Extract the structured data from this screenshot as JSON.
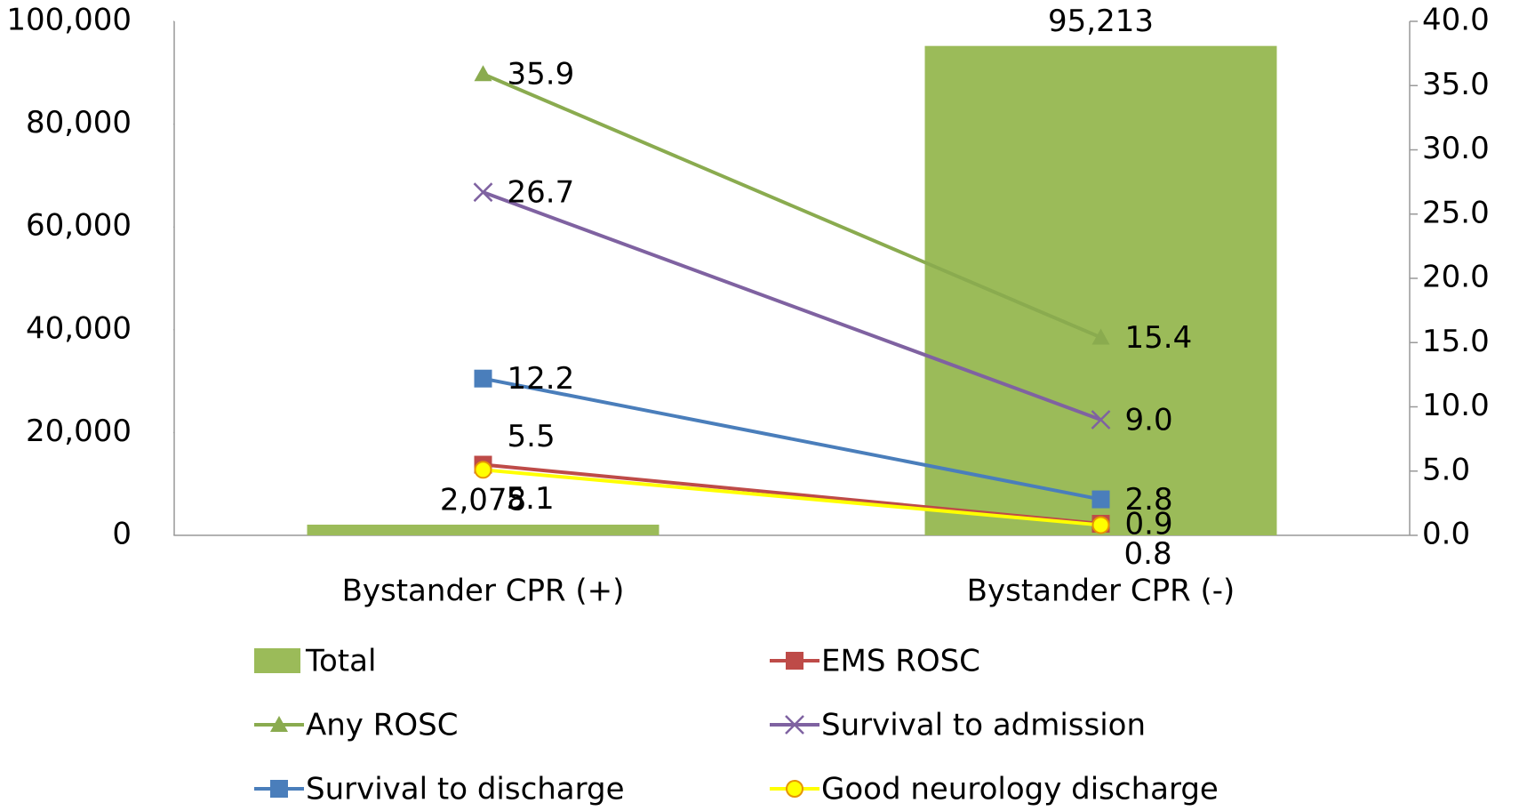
{
  "chart_data": {
    "type": "combo",
    "categories": [
      "Bystander CPR (+)",
      "Bystander CPR (-)"
    ],
    "series": [
      {
        "name": "Total",
        "type": "bar",
        "color": "#9bbb59",
        "values": [
          2078,
          95213
        ],
        "value_labels": [
          "2,078",
          "95,213"
        ]
      },
      {
        "name": "EMS ROSC",
        "type": "line",
        "axis": "y2",
        "marker": "square",
        "color": "#be4b48",
        "values": [
          5.5,
          0.9
        ]
      },
      {
        "name": "Any ROSC",
        "type": "line",
        "axis": "y2",
        "marker": "triangle",
        "color": "#8aab4f",
        "values": [
          35.9,
          15.4
        ]
      },
      {
        "name": "Survival to admission",
        "type": "line",
        "axis": "y2",
        "marker": "x",
        "color": "#7f62a1",
        "values": [
          26.7,
          9.0
        ],
        "value_labels": [
          "26.7",
          "9.0"
        ]
      },
      {
        "name": "Survival to discharge",
        "type": "line",
        "axis": "y2",
        "marker": "square",
        "color": "#4a7ebb",
        "values": [
          12.2,
          2.8
        ]
      },
      {
        "name": "Good neurology discharge",
        "type": "line",
        "axis": "y2",
        "marker": "circle",
        "color": "#ffff00",
        "values": [
          5.1,
          0.8
        ]
      }
    ],
    "ylim": [
      0,
      100000
    ],
    "yticks": [
      0,
      {
        "value": 20000,
        "label": "20,000"
      },
      {
        "value": 40000,
        "label": "40,000"
      },
      {
        "value": 60000,
        "label": "60,000"
      },
      {
        "value": 80000,
        "label": "80,000"
      },
      {
        "value": 100000,
        "label": "100,000"
      }
    ],
    "y2lim": [
      0,
      40
    ],
    "y2ticks": [
      {
        "value": 0,
        "label": "0.0"
      },
      {
        "value": 5,
        "label": "5.0"
      },
      {
        "value": 10,
        "label": "10.0"
      },
      {
        "value": 15,
        "label": "15.0"
      },
      {
        "value": 20,
        "label": "20.0"
      },
      {
        "value": 25,
        "label": "25.0"
      },
      {
        "value": 30,
        "label": "30.0"
      },
      {
        "value": 35,
        "label": "35.0"
      },
      {
        "value": 40,
        "label": "40.0"
      }
    ],
    "legend": "bottom"
  }
}
